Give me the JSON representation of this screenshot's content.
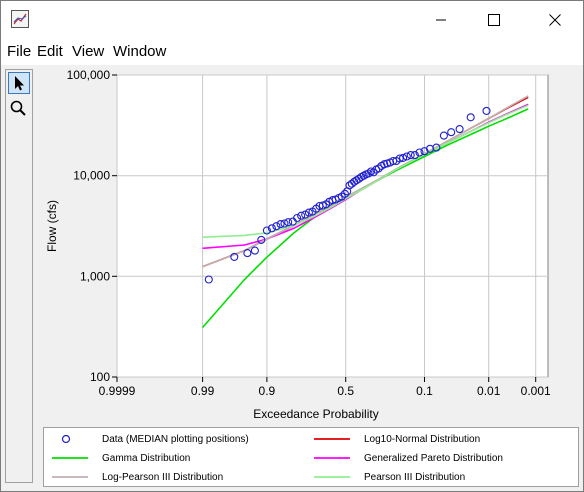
{
  "window": {
    "controls": {
      "minimize": "minimize",
      "maximize": "maximize",
      "close": "close"
    }
  },
  "menu": {
    "items": [
      "File",
      "Edit",
      "View",
      "Window"
    ]
  },
  "toolbar": {
    "tools": [
      "pointer-arrow-icon",
      "zoom-magnifier-icon"
    ]
  },
  "chart_data": {
    "type": "scatter",
    "title": "",
    "xlabel": "Exceedance Probability",
    "ylabel": "Flow (cfs)",
    "x_scale": "normal-probability",
    "y_scale": "log",
    "x_reversed": true,
    "grid": true,
    "xlim": [
      0.9999,
      0.0005
    ],
    "ylim": [
      100,
      100000
    ],
    "x_ticks": [
      0.9999,
      0.99,
      0.9,
      0.5,
      0.1,
      0.01,
      0.001
    ],
    "x_tick_labels": [
      "0.9999",
      "0.99",
      "0.9",
      "0.5",
      "0.1",
      "0.01",
      "0.001"
    ],
    "y_ticks": [
      100,
      1000,
      10000,
      100000
    ],
    "y_tick_labels": [
      "100",
      "1,000",
      "10,000",
      "100,000"
    ],
    "legend_position": "bottom",
    "colors": {
      "data": "#1f1fcf",
      "log10_normal": "#e00000",
      "gamma": "#00e000",
      "gen_pareto": "#ff00ff",
      "log_pearson": "#c0b0b0",
      "pearson": "#90ee90"
    },
    "legend": [
      "Data (MEDIAN plotting positions)",
      "Log10-Normal Distribution",
      "Gamma Distribution",
      "Generalized Pareto Distribution",
      "Log-Pearson III Distribution",
      "Pearson III Distribution"
    ],
    "data_points": [
      [
        0.987,
        930
      ],
      [
        0.965,
        1560
      ],
      [
        0.945,
        1700
      ],
      [
        0.93,
        1800
      ],
      [
        0.915,
        2300
      ],
      [
        0.9,
        2850
      ],
      [
        0.885,
        3000
      ],
      [
        0.87,
        3150
      ],
      [
        0.855,
        3300
      ],
      [
        0.84,
        3350
      ],
      [
        0.825,
        3450
      ],
      [
        0.805,
        3500
      ],
      [
        0.785,
        3800
      ],
      [
        0.765,
        4000
      ],
      [
        0.745,
        4100
      ],
      [
        0.725,
        4300
      ],
      [
        0.705,
        4400
      ],
      [
        0.685,
        4700
      ],
      [
        0.665,
        5000
      ],
      [
        0.645,
        5050
      ],
      [
        0.625,
        5200
      ],
      [
        0.605,
        5500
      ],
      [
        0.585,
        5700
      ],
      [
        0.565,
        5800
      ],
      [
        0.545,
        6000
      ],
      [
        0.525,
        6200
      ],
      [
        0.505,
        6600
      ],
      [
        0.49,
        7000
      ],
      [
        0.475,
        8000
      ],
      [
        0.46,
        8300
      ],
      [
        0.445,
        8700
      ],
      [
        0.43,
        9000
      ],
      [
        0.415,
        9300
      ],
      [
        0.4,
        9700
      ],
      [
        0.385,
        10000
      ],
      [
        0.37,
        10300
      ],
      [
        0.355,
        10500
      ],
      [
        0.34,
        11000
      ],
      [
        0.325,
        10800
      ],
      [
        0.31,
        11500
      ],
      [
        0.295,
        11800
      ],
      [
        0.28,
        12500
      ],
      [
        0.265,
        13000
      ],
      [
        0.25,
        13200
      ],
      [
        0.235,
        13500
      ],
      [
        0.22,
        14000
      ],
      [
        0.205,
        14000
      ],
      [
        0.19,
        14800
      ],
      [
        0.175,
        15000
      ],
      [
        0.16,
        15500
      ],
      [
        0.145,
        16000
      ],
      [
        0.13,
        16000
      ],
      [
        0.115,
        17000
      ],
      [
        0.1,
        17500
      ],
      [
        0.085,
        18500
      ],
      [
        0.07,
        19000
      ],
      [
        0.055,
        25000
      ],
      [
        0.043,
        27000
      ],
      [
        0.032,
        29000
      ],
      [
        0.021,
        38000
      ],
      [
        0.011,
        44000
      ]
    ],
    "series": [
      {
        "name": "Log10-Normal Distribution",
        "points": [
          [
            0.99,
            1250
          ],
          [
            0.95,
            1800
          ],
          [
            0.9,
            2350
          ],
          [
            0.8,
            3200
          ],
          [
            0.7,
            4100
          ],
          [
            0.6,
            5000
          ],
          [
            0.5,
            6100
          ],
          [
            0.4,
            7400
          ],
          [
            0.3,
            9100
          ],
          [
            0.2,
            11800
          ],
          [
            0.1,
            16500
          ],
          [
            0.05,
            21800
          ],
          [
            0.02,
            30000
          ],
          [
            0.01,
            37000
          ],
          [
            0.005,
            45000
          ],
          [
            0.0015,
            60000
          ]
        ]
      },
      {
        "name": "Gamma Distribution",
        "points": [
          [
            0.99,
            310
          ],
          [
            0.95,
            930
          ],
          [
            0.9,
            1550
          ],
          [
            0.8,
            2700
          ],
          [
            0.7,
            3800
          ],
          [
            0.6,
            4900
          ],
          [
            0.5,
            6000
          ],
          [
            0.4,
            7400
          ],
          [
            0.3,
            9000
          ],
          [
            0.2,
            11400
          ],
          [
            0.1,
            15500
          ],
          [
            0.05,
            20000
          ],
          [
            0.02,
            26000
          ],
          [
            0.01,
            31000
          ],
          [
            0.005,
            36000
          ],
          [
            0.0015,
            46000
          ]
        ]
      },
      {
        "name": "Generalized Pareto Distribution",
        "points": [
          [
            0.99,
            1900
          ],
          [
            0.95,
            2050
          ],
          [
            0.9,
            2350
          ],
          [
            0.8,
            3000
          ],
          [
            0.7,
            3800
          ],
          [
            0.6,
            4700
          ],
          [
            0.5,
            5800
          ],
          [
            0.4,
            7200
          ],
          [
            0.3,
            9000
          ],
          [
            0.2,
            11700
          ],
          [
            0.1,
            16300
          ],
          [
            0.05,
            21000
          ],
          [
            0.02,
            28000
          ],
          [
            0.01,
            34000
          ],
          [
            0.005,
            40000
          ],
          [
            0.0015,
            51000
          ]
        ]
      },
      {
        "name": "Log-Pearson III Distribution",
        "points": [
          [
            0.99,
            1250
          ],
          [
            0.95,
            1800
          ],
          [
            0.9,
            2350
          ],
          [
            0.8,
            3200
          ],
          [
            0.7,
            4100
          ],
          [
            0.6,
            5000
          ],
          [
            0.5,
            6100
          ],
          [
            0.4,
            7400
          ],
          [
            0.3,
            9100
          ],
          [
            0.2,
            11800
          ],
          [
            0.1,
            16500
          ],
          [
            0.05,
            21800
          ],
          [
            0.02,
            30000
          ],
          [
            0.01,
            37000
          ],
          [
            0.005,
            45500
          ],
          [
            0.0015,
            62000
          ]
        ]
      },
      {
        "name": "Pearson III Distribution",
        "points": [
          [
            0.99,
            2450
          ],
          [
            0.95,
            2550
          ],
          [
            0.9,
            2700
          ],
          [
            0.8,
            3200
          ],
          [
            0.7,
            3900
          ],
          [
            0.6,
            4800
          ],
          [
            0.5,
            5900
          ],
          [
            0.4,
            7200
          ],
          [
            0.3,
            9000
          ],
          [
            0.2,
            11700
          ],
          [
            0.1,
            16200
          ],
          [
            0.05,
            21000
          ],
          [
            0.02,
            28000
          ],
          [
            0.01,
            33500
          ],
          [
            0.005,
            39500
          ],
          [
            0.0015,
            50000
          ]
        ]
      }
    ]
  }
}
